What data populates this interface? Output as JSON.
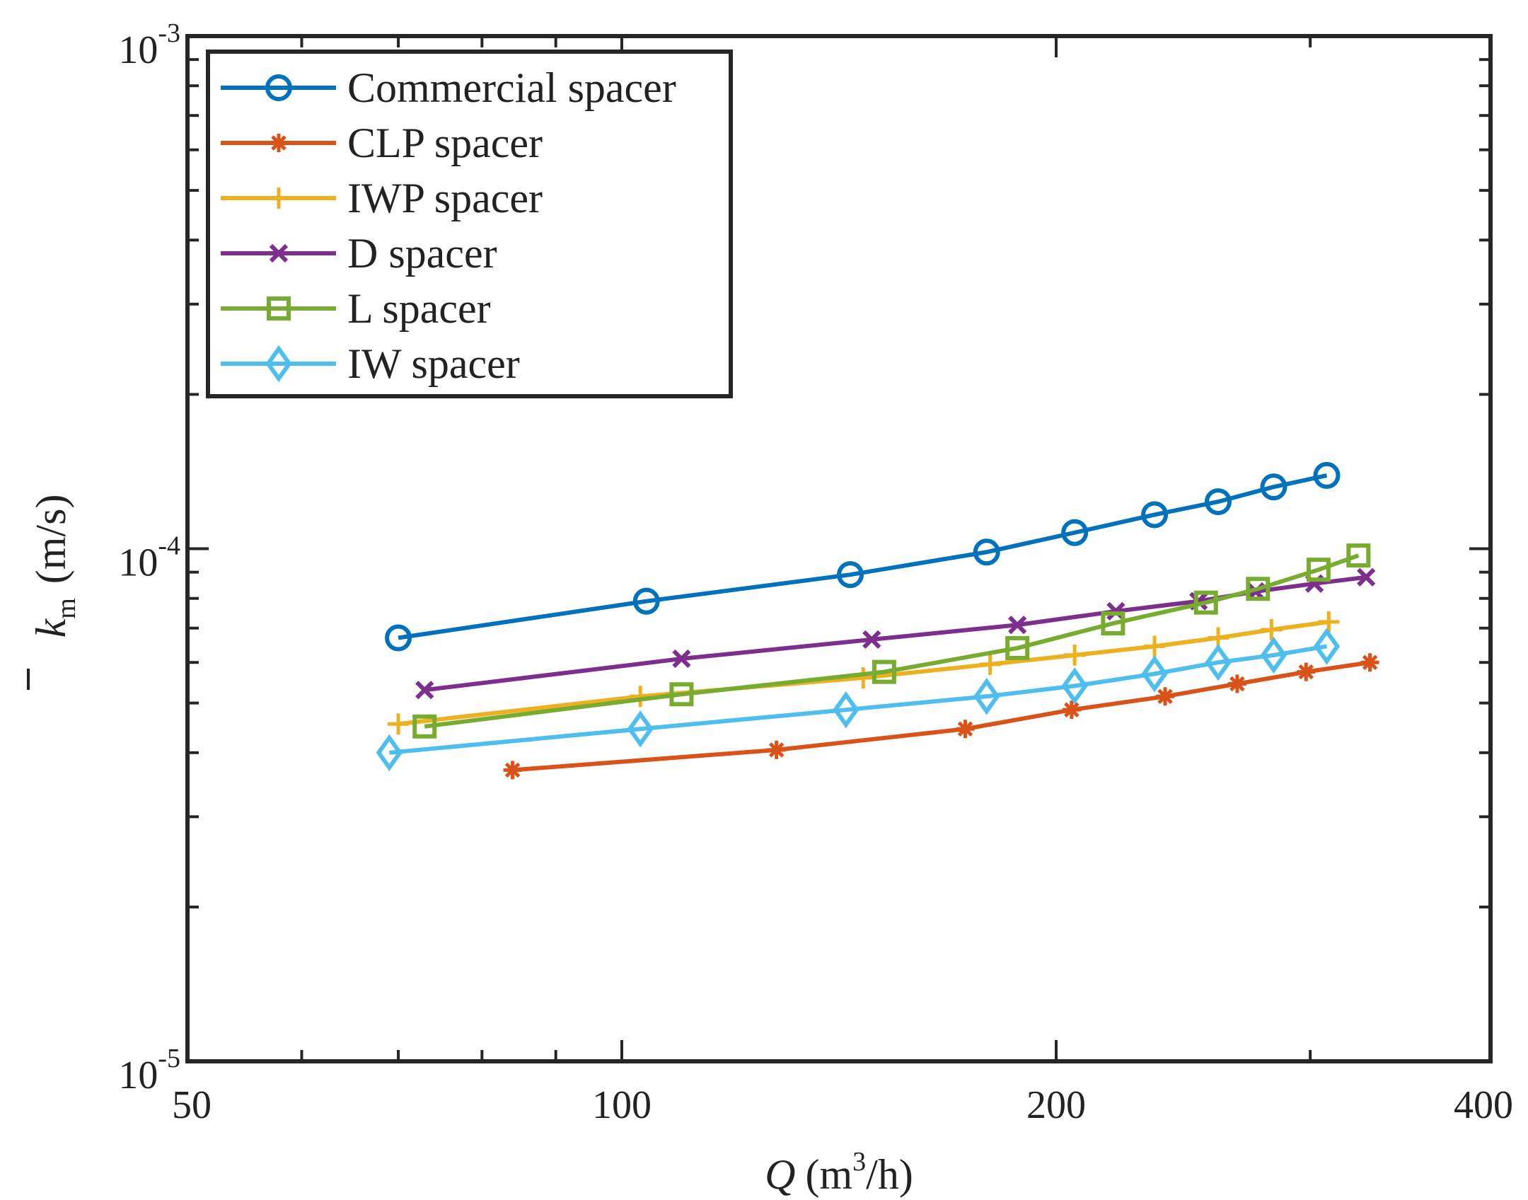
{
  "chart_data": {
    "type": "line",
    "x_scale": "log",
    "y_scale": "log",
    "xlim": [
      50,
      400
    ],
    "ylim": [
      1e-05,
      0.001
    ],
    "xlabel": {
      "symbol": "Q",
      "unit_open": "(m",
      "unit_sup": "3",
      "unit_close": "/h)"
    },
    "ylabel": {
      "symbol": "k",
      "subscript": "m",
      "unit": "(m/s)",
      "overline": true
    },
    "x_ticks": [
      {
        "value": 50,
        "label": "50"
      },
      {
        "value": 100,
        "label": "100"
      },
      {
        "value": 200,
        "label": "200"
      },
      {
        "value": 400,
        "label": "400"
      }
    ],
    "y_ticks": [
      {
        "value": 1e-05,
        "base": "10",
        "exp": "-5"
      },
      {
        "value": 0.0001,
        "base": "10",
        "exp": "-4"
      },
      {
        "value": 0.001,
        "base": "10",
        "exp": "-3"
      }
    ],
    "grid": false,
    "legend_position": "top-left",
    "series": [
      {
        "name": "Commercial spacer",
        "color": "#0072BD",
        "marker": "circle",
        "points": [
          [
            70,
            6.7e-05
          ],
          [
            104,
            7.9e-05
          ],
          [
            144,
            8.9e-05
          ],
          [
            179,
            9.85e-05
          ],
          [
            206,
            0.0001075
          ],
          [
            234,
            0.0001165
          ],
          [
            259,
            0.0001235
          ],
          [
            283,
            0.000132
          ],
          [
            308,
            0.000139
          ]
        ]
      },
      {
        "name": "CLP spacer",
        "color": "#D95319",
        "marker": "asterisk",
        "points": [
          [
            84,
            3.7e-05
          ],
          [
            128,
            4.05e-05
          ],
          [
            173,
            4.45e-05
          ],
          [
            205,
            4.85e-05
          ],
          [
            238,
            5.15e-05
          ],
          [
            267,
            5.45e-05
          ],
          [
            298,
            5.75e-05
          ],
          [
            330,
            6e-05
          ]
        ]
      },
      {
        "name": "IWP spacer",
        "color": "#EDB120",
        "marker": "plus",
        "points": [
          [
            70,
            4.55e-05
          ],
          [
            103,
            5.15e-05
          ],
          [
            147,
            5.6e-05
          ],
          [
            180,
            5.95e-05
          ],
          [
            206,
            6.2e-05
          ],
          [
            234,
            6.45e-05
          ],
          [
            259,
            6.7e-05
          ],
          [
            282,
            6.95e-05
          ],
          [
            309,
            7.2e-05
          ]
        ]
      },
      {
        "name": "D spacer",
        "color": "#7E2F8E",
        "marker": "x",
        "points": [
          [
            73,
            5.3e-05
          ],
          [
            110,
            6.1e-05
          ],
          [
            149,
            6.65e-05
          ],
          [
            188,
            7.1e-05
          ],
          [
            220,
            7.55e-05
          ],
          [
            251,
            7.9e-05
          ],
          [
            275,
            8.25e-05
          ],
          [
            302,
            8.55e-05
          ],
          [
            328,
            8.8e-05
          ]
        ]
      },
      {
        "name": "L spacer",
        "color": "#77AC30",
        "marker": "square",
        "points": [
          [
            73,
            4.5e-05
          ],
          [
            110,
            5.2e-05
          ],
          [
            152,
            5.75e-05
          ],
          [
            188,
            6.4e-05
          ],
          [
            219,
            7.15e-05
          ],
          [
            254,
            7.85e-05
          ],
          [
            276,
            8.35e-05
          ],
          [
            304,
            9.1e-05
          ],
          [
            324,
            9.7e-05
          ]
        ]
      },
      {
        "name": "IW spacer",
        "color": "#4DBEEE",
        "marker": "diamond",
        "points": [
          [
            69,
            4e-05
          ],
          [
            103,
            4.45e-05
          ],
          [
            143,
            4.85e-05
          ],
          [
            179,
            5.15e-05
          ],
          [
            206,
            5.4e-05
          ],
          [
            234,
            5.7e-05
          ],
          [
            259,
            6e-05
          ],
          [
            283,
            6.2e-05
          ],
          [
            308,
            6.45e-05
          ]
        ]
      }
    ]
  }
}
